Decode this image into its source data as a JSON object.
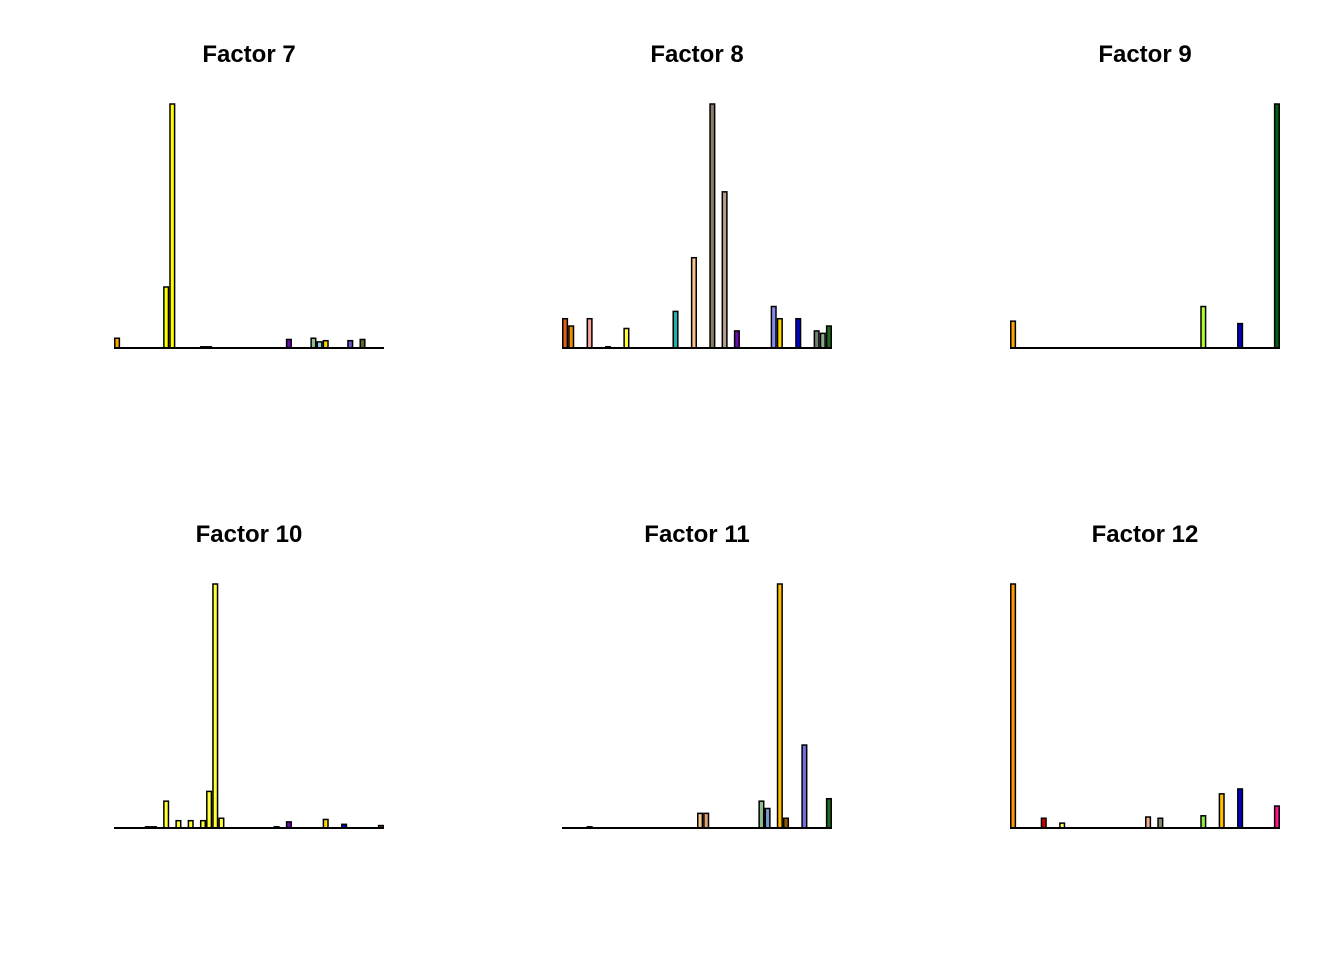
{
  "chart_data": [
    {
      "type": "bar",
      "title": "Factor 7",
      "ylim": [
        0,
        1
      ],
      "values": [
        0.04,
        0,
        0,
        0,
        0,
        0,
        0,
        0,
        0.25,
        1.0,
        0,
        0,
        0,
        0,
        0.005,
        0.005,
        0,
        0,
        0,
        0,
        0,
        0,
        0,
        0,
        0,
        0,
        0,
        0,
        0.035,
        0,
        0,
        0,
        0.04,
        0.025,
        0.03,
        0,
        0,
        0,
        0.03,
        0,
        0.035,
        0,
        0,
        0
      ],
      "colors": [
        "#FFA500",
        "#FFFFFF",
        "#FFFFFF",
        "#FFFFFF",
        "#FFFFFF",
        "#FFFFFF",
        "#FFFFFF",
        "#FFFFFF",
        "#FFFF00",
        "#FFFF00",
        "#FFFFFF",
        "#FFFFFF",
        "#FFFFFF",
        "#FFFFFF",
        "#228B22",
        "#8B008B",
        "#FFFFFF",
        "#FFFFFF",
        "#FFFFFF",
        "#FFFFFF",
        "#FFFFFF",
        "#FFFFFF",
        "#FFFFFF",
        "#FFFFFF",
        "#FFFFFF",
        "#FFFFFF",
        "#FFFFFF",
        "#FFFFFF",
        "#6A0DAD",
        "#FFFFFF",
        "#FFFFFF",
        "#FFFFFF",
        "#8FBC8F",
        "#87CEEB",
        "#FFD700",
        "#FFFFFF",
        "#FFFFFF",
        "#FFFFFF",
        "#6A5ACD",
        "#FFFFFF",
        "#556B2F",
        "#FFFFFF",
        "#FFFFFF",
        "#FFFFFF"
      ]
    },
    {
      "type": "bar",
      "title": "Factor 8",
      "ylim": [
        0,
        1
      ],
      "values": [
        0.12,
        0.09,
        0,
        0,
        0.12,
        0,
        0,
        0.005,
        0,
        0,
        0.08,
        0,
        0,
        0,
        0,
        0,
        0,
        0,
        0.15,
        0,
        0,
        0.37,
        0,
        0,
        1.0,
        0,
        0.64,
        0,
        0.07,
        0,
        0,
        0,
        0,
        0,
        0.17,
        0.12,
        0,
        0,
        0.12,
        0,
        0,
        0.07,
        0.06,
        0.09
      ],
      "colors": [
        "#E2611A",
        "#F08C00",
        "#FFFFFF",
        "#FFFFFF",
        "#F4A69B",
        "#FFFFFF",
        "#FFFFFF",
        "#2E8B57",
        "#FFFFFF",
        "#FFFFFF",
        "#FFFF33",
        "#FFFFFF",
        "#FFFFFF",
        "#FFFFFF",
        "#FFFFFF",
        "#FFFFFF",
        "#FFFFFF",
        "#FFFFFF",
        "#20B2AA",
        "#FFFFFF",
        "#FFFFFF",
        "#F4C48C",
        "#FFFFFF",
        "#FFFFFF",
        "#8B7D6B",
        "#FFFFFF",
        "#B89C8C",
        "#FFFFFF",
        "#6A0DAD",
        "#FFFFFF",
        "#FFFFFF",
        "#FFFFFF",
        "#FFFFFF",
        "#FFFFFF",
        "#8888EE",
        "#FFD700",
        "#FFFFFF",
        "#FFFFFF",
        "#0000CD",
        "#FFFFFF",
        "#FFFFFF",
        "#708070",
        "#8FA88F",
        "#1F6B1F"
      ]
    },
    {
      "type": "bar",
      "title": "Factor 9",
      "ylim": [
        0,
        1
      ],
      "values": [
        0.11,
        0,
        0,
        0,
        0,
        0,
        0,
        0,
        0,
        0,
        0,
        0,
        0,
        0,
        0,
        0,
        0,
        0,
        0,
        0,
        0,
        0,
        0,
        0,
        0,
        0,
        0,
        0,
        0,
        0,
        0,
        0.17,
        0,
        0,
        0,
        0,
        0,
        0.1,
        0,
        0,
        0,
        0,
        0,
        1.0
      ],
      "colors": [
        "#FFA500",
        "#FFFFFF",
        "#FFFFFF",
        "#FFFFFF",
        "#FFFFFF",
        "#FFFFFF",
        "#FFFFFF",
        "#FFFFFF",
        "#FFFFFF",
        "#FFFFFF",
        "#FFFFFF",
        "#FFFFFF",
        "#FFFFFF",
        "#FFFFFF",
        "#FFFFFF",
        "#FFFFFF",
        "#FFFFFF",
        "#FFFFFF",
        "#FFFFFF",
        "#FFFFFF",
        "#FFFFFF",
        "#FFFFFF",
        "#FFFFFF",
        "#FFFFFF",
        "#FFFFFF",
        "#FFFFFF",
        "#FFFFFF",
        "#FFFFFF",
        "#FFFFFF",
        "#FFFFFF",
        "#FFFFFF",
        "#ADFF2F",
        "#FFFFFF",
        "#FFFFFF",
        "#FFFFFF",
        "#FFFFFF",
        "#FFFFFF",
        "#0000CD",
        "#FFFFFF",
        "#FFFFFF",
        "#FFFFFF",
        "#FFFFFF",
        "#FFFFFF",
        "#0B5E0B"
      ]
    },
    {
      "type": "bar",
      "title": "Factor 10",
      "ylim": [
        0,
        1
      ],
      "values": [
        0,
        0,
        0,
        0,
        0,
        0.002,
        0.002,
        0,
        0.11,
        0,
        0.03,
        0,
        0.03,
        0,
        0.03,
        0.15,
        1.0,
        0.04,
        0,
        0,
        0,
        0,
        0,
        0,
        0,
        0,
        0.003,
        0,
        0.025,
        0,
        0,
        0,
        0,
        0,
        0.035,
        0,
        0,
        0.015,
        0,
        0,
        0,
        0,
        0,
        0.01
      ],
      "colors": [
        "#FFFFFF",
        "#FFFFFF",
        "#FFFFFF",
        "#FFFFFF",
        "#FFFFFF",
        "#556B2F",
        "#556B2F",
        "#FFFFFF",
        "#FFFF33",
        "#FFFFFF",
        "#FFFF33",
        "#FFFFFF",
        "#FFFF33",
        "#FFFFFF",
        "#FFFF33",
        "#FFFF33",
        "#FFFF33",
        "#FFFF33",
        "#FFFFFF",
        "#FFFFFF",
        "#FFFFFF",
        "#FFFFFF",
        "#FFFFFF",
        "#FFFFFF",
        "#FFFFFF",
        "#FFFFFF",
        "#8B0000",
        "#FFFFFF",
        "#6A0DAD",
        "#FFFFFF",
        "#FFFFFF",
        "#FFFFFF",
        "#FFFFFF",
        "#FFFFFF",
        "#FFD700",
        "#FFFFFF",
        "#FFFFFF",
        "#0000CD",
        "#FFFFFF",
        "#FFFFFF",
        "#FFFFFF",
        "#FFFFFF",
        "#FFFFFF",
        "#8B4513"
      ]
    },
    {
      "type": "bar",
      "title": "Factor 11",
      "ylim": [
        0,
        1
      ],
      "values": [
        0,
        0,
        0,
        0,
        0.002,
        0,
        0,
        0,
        0,
        0,
        0,
        0,
        0,
        0,
        0,
        0,
        0,
        0,
        0,
        0,
        0,
        0,
        0.06,
        0.06,
        0,
        0,
        0,
        0,
        0,
        0,
        0,
        0,
        0.11,
        0.08,
        0,
        1.0,
        0.04,
        0,
        0,
        0.34,
        0,
        0,
        0,
        0.12
      ],
      "colors": [
        "#FFFFFF",
        "#FFFFFF",
        "#FFFFFF",
        "#FFFFFF",
        "#556B2F",
        "#FFFFFF",
        "#FFFFFF",
        "#FFFFFF",
        "#FFFFFF",
        "#FFFFFF",
        "#FFFFFF",
        "#FFFFFF",
        "#FFFFFF",
        "#FFFFFF",
        "#FFFFFF",
        "#FFFFFF",
        "#FFFFFF",
        "#FFFFFF",
        "#FFFFFF",
        "#FFFFFF",
        "#FFFFFF",
        "#FFFFFF",
        "#F4C48C",
        "#E0A070",
        "#FFFFFF",
        "#FFFFFF",
        "#FFFFFF",
        "#FFFFFF",
        "#FFFFFF",
        "#FFFFFF",
        "#FFFFFF",
        "#FFFFFF",
        "#8FBC8F",
        "#7799CC",
        "#FFFFFF",
        "#FFC000",
        "#8B5A00",
        "#FFFFFF",
        "#FFFFFF",
        "#7070E0",
        "#FFFFFF",
        "#FFFFFF",
        "#FFFFFF",
        "#1F6B1F"
      ]
    },
    {
      "type": "bar",
      "title": "Factor 12",
      "ylim": [
        0,
        1
      ],
      "values": [
        1.0,
        0,
        0,
        0,
        0,
        0.04,
        0,
        0,
        0.02,
        0,
        0,
        0,
        0,
        0,
        0,
        0,
        0,
        0,
        0,
        0,
        0,
        0,
        0.045,
        0,
        0.04,
        0,
        0,
        0,
        0,
        0,
        0,
        0.05,
        0,
        0,
        0.14,
        0,
        0,
        0.16,
        0,
        0,
        0,
        0,
        0,
        0.09
      ],
      "colors": [
        "#FF9900",
        "#FFFFFF",
        "#FFFFFF",
        "#FFFFFF",
        "#FFFFFF",
        "#CC0000",
        "#FFFFFF",
        "#FFFFFF",
        "#FFFF66",
        "#FFFFFF",
        "#FFFFFF",
        "#FFFFFF",
        "#FFFFFF",
        "#FFFFFF",
        "#FFFFFF",
        "#FFFFFF",
        "#FFFFFF",
        "#FFFFFF",
        "#FFFFFF",
        "#FFFFFF",
        "#FFFFFF",
        "#FFFFFF",
        "#F4B08C",
        "#FFFFFF",
        "#8B8B6B",
        "#FFFFFF",
        "#FFFFFF",
        "#FFFFFF",
        "#FFFFFF",
        "#FFFFFF",
        "#FFFFFF",
        "#90EE40",
        "#FFFFFF",
        "#FFFFFF",
        "#FFC000",
        "#FFFFFF",
        "#FFFFFF",
        "#0000CD",
        "#FFFFFF",
        "#FFFFFF",
        "#FFFFFF",
        "#FFFFFF",
        "#FFFFFF",
        "#FF1493"
      ]
    }
  ]
}
